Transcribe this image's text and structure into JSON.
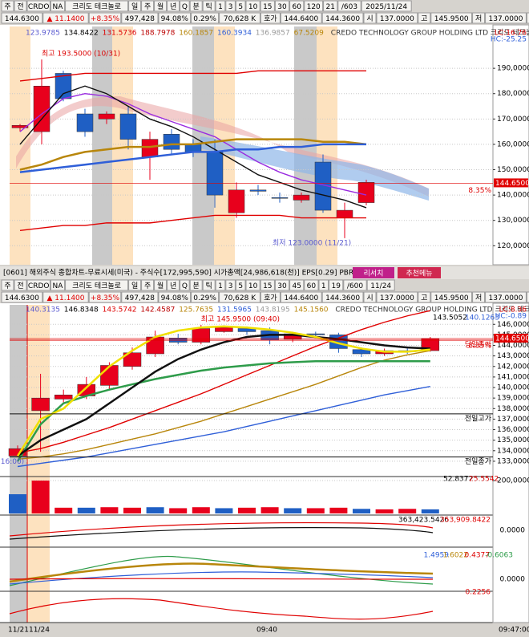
{
  "top_window": {
    "toolbar": [
      "주",
      "전",
      "CRDO",
      "NA",
      "크리도 테크놀로",
      "일",
      "주",
      "월",
      "년",
      "Q",
      "분",
      "틱",
      "1",
      "3",
      "5",
      "10",
      "15",
      "30",
      "60",
      "120",
      "21",
      "/603",
      "2025/11/24"
    ],
    "quote": [
      "144.6300",
      "▲ 11.1400",
      "+8.35%",
      "497,428",
      "94.08%",
      "0.29%",
      "70,628 K",
      "호가",
      "144.6400",
      "144.3600",
      "시",
      "137.0000",
      "고",
      "145.9500",
      "저",
      "137.0000",
      "매수",
      "매도",
      "정"
    ],
    "legend": [
      "123.9785",
      "134.8422",
      "131.5736",
      "188.7978",
      "160.1857",
      "160.3934",
      "136.9857",
      "67.5209"
    ],
    "title": "CREDO TECHNOLOGY GROUP HOLDING LTD  크리도 테크놀로지 그룹 홀딩",
    "lc": "LC:16.76",
    "hc": "HC:-25.25"
  },
  "bottom_window": {
    "caption": "[0601] 해외주식 종합차트-무료시세(미국) - 주식수[172,995,590] 시가총액[24,986,618(천)] EPS[0.29] PBR[39",
    "buttons": [
      "리서치",
      "추천메뉴"
    ],
    "toolbar": [
      "주",
      "전",
      "CRDO",
      "NA",
      "크리도 테크놀로",
      "일",
      "주",
      "월",
      "년",
      "Q",
      "분",
      "틱",
      "1",
      "3",
      "5",
      "10",
      "15",
      "30",
      "45",
      "60",
      "1",
      "19",
      "/600",
      "11/24"
    ],
    "quote": [
      "144.6300",
      "▲ 11.1400",
      "+8.35%",
      "497,428",
      "94.08%",
      "0.29%",
      "70,628 K",
      "호가",
      "144.6400",
      "144.3600",
      "시",
      "137.0000",
      "고",
      "145.9500",
      "저",
      "137.0000",
      "매수",
      "매도",
      "평"
    ],
    "legend": [
      "140.3135",
      "146.8348",
      "143.5742",
      "142.4587",
      "125.7635",
      "131.5965",
      "143.8195",
      "145.1560"
    ],
    "title": "CREDO TECHNOLOGY GROUP HOLDING LTD  크리도 테크놀로지 그룹 홀딩",
    "lc": "LC:8.36",
    "hc": "HC:-0.89",
    "price_labels": [
      "143.5052",
      "140.1263"
    ],
    "volume_labels": [
      "52.8372",
      "25.5542"
    ],
    "pane_labels": [
      "363,423.5426",
      "353,909.8422",
      "0.0000",
      "1.4959",
      "1.6022",
      "0.4377",
      "-0.6063",
      "0.0000",
      "0.2256"
    ],
    "x_labels": [
      "11/21",
      "11/24",
      "09:40",
      "09:47:00"
    ]
  },
  "chart_data": [
    {
      "type": "candlestick",
      "up_color": "#e8001c",
      "down_color": "#1f5fc4",
      "open": [
        166.5,
        165,
        188,
        172,
        170,
        172,
        155,
        164,
        160,
        157,
        133,
        142,
        139,
        138,
        153,
        131,
        137
      ],
      "high": [
        168,
        193.5,
        189,
        174,
        173,
        175,
        165,
        166,
        162,
        162,
        145,
        144,
        141,
        141,
        156,
        137,
        146
      ],
      "low": [
        165,
        160,
        177,
        163,
        168,
        158,
        146,
        156,
        155,
        135,
        131,
        140,
        137,
        137,
        133,
        123,
        136
      ],
      "close": [
        167.5,
        183,
        178,
        165,
        172,
        162,
        162,
        158,
        157,
        140,
        142,
        141.5,
        138.8,
        140,
        134,
        134,
        145
      ],
      "series": [
        {
          "color": "#e00000",
          "values": [
            185,
            186,
            187,
            188,
            188,
            188,
            188,
            188,
            188,
            188,
            188,
            189,
            189,
            189,
            189,
            189,
            189
          ]
        },
        {
          "color": "#e00000",
          "values": [
            126,
            127,
            128,
            128,
            129,
            129,
            129,
            130,
            131,
            132,
            132,
            132,
            132,
            131,
            131,
            131,
            131
          ]
        },
        {
          "color": "#9a2be0",
          "values": [
            165,
            172,
            178,
            180,
            179,
            176,
            172,
            169,
            166,
            163,
            158,
            153,
            149,
            146,
            144,
            142,
            140
          ]
        },
        {
          "color": "#111111",
          "values": [
            160,
            170,
            180,
            183,
            180,
            175,
            170,
            167,
            163,
            158,
            153,
            148,
            145,
            142,
            140,
            138,
            135
          ]
        },
        {
          "color": "#b8860b",
          "values": [
            150,
            152,
            155,
            157,
            158,
            159,
            159,
            160,
            160,
            161,
            162,
            162,
            162,
            162,
            161,
            161,
            160
          ]
        },
        {
          "color": "#2f5fd8",
          "values": [
            149,
            150,
            151,
            152,
            153,
            154,
            155,
            156,
            157,
            157,
            158,
            158,
            159,
            159,
            160,
            160,
            160
          ]
        }
      ],
      "ylim": [
        112.5,
        206.5
      ],
      "yticks": [
        {
          "value": 120,
          "label": "120,0000"
        },
        {
          "value": 130,
          "label": "130,0000"
        },
        {
          "value": 140,
          "label": "140,0000"
        },
        {
          "value": 150,
          "label": "150,0000"
        },
        {
          "value": 160,
          "label": "160,0000"
        },
        {
          "value": 170,
          "label": "170,0000"
        },
        {
          "value": 180,
          "label": "180,0000"
        },
        {
          "value": 190,
          "label": "190,0000"
        }
      ],
      "high_label": "최고 193.5000 (10/31)",
      "low_label": "최저 123.0000 (11/21)",
      "last": {
        "value": 144.65,
        "label": "144.6500"
      },
      "change_label": "8.35%"
    },
    {
      "type": "candlestick",
      "up_color": "#e8001c",
      "down_color": "#1f5fc4",
      "open": [
        133.5,
        137.8,
        138.9,
        139.2,
        140.2,
        142,
        143.2,
        144.7,
        144.3,
        145.3,
        145.6,
        145.4,
        144.6,
        145.1,
        145,
        143.6,
        143.2,
        143.5,
        143.5
      ],
      "high": [
        134.5,
        141.3,
        139.8,
        141,
        142.4,
        143.8,
        145.4,
        145.1,
        145.95,
        145.9,
        145.8,
        145.7,
        145.3,
        145.3,
        145.2,
        143.8,
        143.7,
        143.7,
        144.8
      ],
      "low": [
        133.4,
        133.9,
        138.6,
        138.9,
        139.8,
        141.7,
        142.9,
        144.1,
        144.1,
        145.2,
        145,
        144.1,
        144.3,
        144.8,
        143.3,
        142.9,
        143,
        143.2,
        143.4
      ],
      "close": [
        134.2,
        139,
        139.3,
        140.3,
        142.1,
        143.3,
        144.8,
        144.3,
        145.6,
        145.7,
        145.3,
        144.5,
        145.1,
        145,
        143.7,
        143.2,
        143.5,
        143.4,
        144.65
      ],
      "series": [
        {
          "color": "#e00000",
          "values": [
            133.8,
            134.2,
            134.8,
            135.5,
            136.2,
            137,
            137.8,
            138.6,
            139.4,
            140.3,
            141.2,
            142.1,
            143,
            143.9,
            144.7,
            145.5,
            146.2,
            146.8,
            147.3
          ]
        },
        {
          "color": "#2f5fd8",
          "values": [
            132.5,
            132.8,
            133.1,
            133.4,
            133.8,
            134.2,
            134.6,
            135,
            135.4,
            135.8,
            136.3,
            136.8,
            137.3,
            137.8,
            138.3,
            138.8,
            139.3,
            139.7,
            140.1
          ]
        },
        {
          "color": "#b8860b",
          "values": [
            133.2,
            133.4,
            133.7,
            134.1,
            134.6,
            135.1,
            135.6,
            136.2,
            136.8,
            137.5,
            138.2,
            138.9,
            139.6,
            140.3,
            141.1,
            141.9,
            142.6,
            143.1,
            143.5
          ]
        },
        {
          "color": "#2e9c4a",
          "values": [
            133,
            136.5,
            138.5,
            139.2,
            139.8,
            140.3,
            140.8,
            141.2,
            141.6,
            141.9,
            142.1,
            142.3,
            142.4,
            142.5,
            142.5,
            142.5,
            142.5,
            142.5,
            142.5
          ]
        },
        {
          "color": "#111111",
          "values": [
            133.5,
            135,
            136,
            137,
            138.5,
            140,
            141.5,
            142.7,
            143.6,
            144.3,
            144.8,
            145,
            145,
            144.8,
            144.6,
            144.3,
            144,
            143.8,
            143.7
          ]
        },
        {
          "color": "#f0e000",
          "values": [
            133.5,
            137,
            138,
            140,
            142,
            143.5,
            144.8,
            145.4,
            145.7,
            145.8,
            145.7,
            145.5,
            145.2,
            144.8,
            144.2,
            143.7,
            143.4,
            143.4,
            143.6
          ]
        }
      ],
      "ylim": [
        131.7,
        148
      ],
      "yticks": [
        {
          "value": 133,
          "label": "133,0000"
        },
        {
          "value": 134,
          "label": "134,0000"
        },
        {
          "value": 135,
          "label": "135,0000"
        },
        {
          "value": 136,
          "label": "136,0000"
        },
        {
          "value": 137,
          "label": "137,0000"
        },
        {
          "value": 138,
          "label": "138,0000"
        },
        {
          "value": 139,
          "label": "139,0000"
        },
        {
          "value": 140,
          "label": "140,0000"
        },
        {
          "value": 141,
          "label": "141,0000"
        },
        {
          "value": 142,
          "label": "142,0000"
        },
        {
          "value": 143,
          "label": "143,0000"
        },
        {
          "value": 144,
          "label": "144,0000"
        },
        {
          "value": 145,
          "label": "145,0000"
        },
        {
          "value": 146,
          "label": "146,0000"
        }
      ],
      "high_label": "최고 145.9500 (09:40)",
      "low_label": "최저 133.4000 (16:00)",
      "last": {
        "value": 144.65,
        "label": "144.6500"
      },
      "change_label": "8.35%",
      "ref_lines": [
        {
          "label": "당일종가",
          "value": 144.5
        },
        {
          "label": "전일고가",
          "value": 137.5
        },
        {
          "label": "전일종가",
          "value": 133.4
        }
      ]
    },
    {
      "type": "bar",
      "up_color": "#e8001c",
      "down_color": "#1f5fc4",
      "values": [
        117,
        200,
        35,
        35,
        38,
        35,
        38,
        32,
        38,
        32,
        35,
        38,
        32,
        32,
        35,
        28,
        25,
        28,
        25
      ],
      "ylim": [
        0,
        210
      ],
      "yticks": [
        {
          "value": 200,
          "label": "200,0000"
        }
      ]
    }
  ]
}
